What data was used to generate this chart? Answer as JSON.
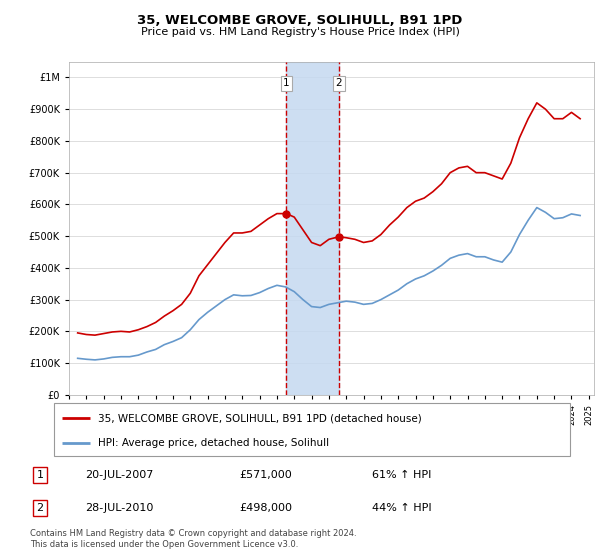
{
  "title": "35, WELCOMBE GROVE, SOLIHULL, B91 1PD",
  "subtitle": "Price paid vs. HM Land Registry's House Price Index (HPI)",
  "legend_line1": "35, WELCOMBE GROVE, SOLIHULL, B91 1PD (detached house)",
  "legend_line2": "HPI: Average price, detached house, Solihull",
  "transaction1_label": "1",
  "transaction1_date": "20-JUL-2007",
  "transaction1_price": "£571,000",
  "transaction1_hpi": "61% ↑ HPI",
  "transaction2_label": "2",
  "transaction2_date": "28-JUL-2010",
  "transaction2_price": "£498,000",
  "transaction2_hpi": "44% ↑ HPI",
  "footer": "Contains HM Land Registry data © Crown copyright and database right 2024.\nThis data is licensed under the Open Government Licence v3.0.",
  "red_line_color": "#cc0000",
  "blue_line_color": "#6699cc",
  "shading_color": "#c5d9f0",
  "transaction1_x": 2007.55,
  "transaction2_x": 2010.57,
  "ylim_max": 1050000,
  "ylim_min": 0,
  "red_hpi_data": {
    "years": [
      1995.5,
      1996.0,
      1996.5,
      1997.0,
      1997.5,
      1998.0,
      1998.5,
      1999.0,
      1999.5,
      2000.0,
      2000.5,
      2001.0,
      2001.5,
      2002.0,
      2002.5,
      2003.0,
      2003.5,
      2004.0,
      2004.5,
      2005.0,
      2005.5,
      2006.0,
      2006.5,
      2007.0,
      2007.55,
      2008.0,
      2008.5,
      2009.0,
      2009.5,
      2010.0,
      2010.57,
      2011.0,
      2011.5,
      2012.0,
      2012.5,
      2013.0,
      2013.5,
      2014.0,
      2014.5,
      2015.0,
      2015.5,
      2016.0,
      2016.5,
      2017.0,
      2017.5,
      2018.0,
      2018.5,
      2019.0,
      2019.5,
      2020.0,
      2020.5,
      2021.0,
      2021.5,
      2022.0,
      2022.5,
      2023.0,
      2023.5,
      2024.0,
      2024.5
    ],
    "values": [
      195000,
      190000,
      188000,
      193000,
      198000,
      200000,
      198000,
      205000,
      215000,
      228000,
      248000,
      265000,
      285000,
      320000,
      375000,
      410000,
      445000,
      480000,
      510000,
      510000,
      515000,
      535000,
      555000,
      571000,
      571000,
      560000,
      520000,
      480000,
      470000,
      490000,
      498000,
      495000,
      490000,
      480000,
      485000,
      505000,
      535000,
      560000,
      590000,
      610000,
      620000,
      640000,
      665000,
      700000,
      715000,
      720000,
      700000,
      700000,
      690000,
      680000,
      730000,
      810000,
      870000,
      920000,
      900000,
      870000,
      870000,
      890000,
      870000
    ]
  },
  "blue_hpi_data": {
    "years": [
      1995.5,
      1996.0,
      1996.5,
      1997.0,
      1997.5,
      1998.0,
      1998.5,
      1999.0,
      1999.5,
      2000.0,
      2000.5,
      2001.0,
      2001.5,
      2002.0,
      2002.5,
      2003.0,
      2003.5,
      2004.0,
      2004.5,
      2005.0,
      2005.5,
      2006.0,
      2006.5,
      2007.0,
      2007.5,
      2008.0,
      2008.5,
      2009.0,
      2009.5,
      2010.0,
      2010.5,
      2011.0,
      2011.5,
      2012.0,
      2012.5,
      2013.0,
      2013.5,
      2014.0,
      2014.5,
      2015.0,
      2015.5,
      2016.0,
      2016.5,
      2017.0,
      2017.5,
      2018.0,
      2018.5,
      2019.0,
      2019.5,
      2020.0,
      2020.5,
      2021.0,
      2021.5,
      2022.0,
      2022.5,
      2023.0,
      2023.5,
      2024.0,
      2024.5
    ],
    "values": [
      115000,
      112000,
      110000,
      113000,
      118000,
      120000,
      120000,
      125000,
      135000,
      143000,
      158000,
      168000,
      180000,
      205000,
      237000,
      260000,
      280000,
      300000,
      315000,
      312000,
      313000,
      322000,
      335000,
      345000,
      340000,
      325000,
      300000,
      278000,
      275000,
      285000,
      290000,
      295000,
      292000,
      285000,
      288000,
      300000,
      315000,
      330000,
      350000,
      365000,
      375000,
      390000,
      408000,
      430000,
      440000,
      445000,
      435000,
      435000,
      425000,
      418000,
      450000,
      505000,
      550000,
      590000,
      575000,
      555000,
      558000,
      570000,
      565000
    ]
  }
}
